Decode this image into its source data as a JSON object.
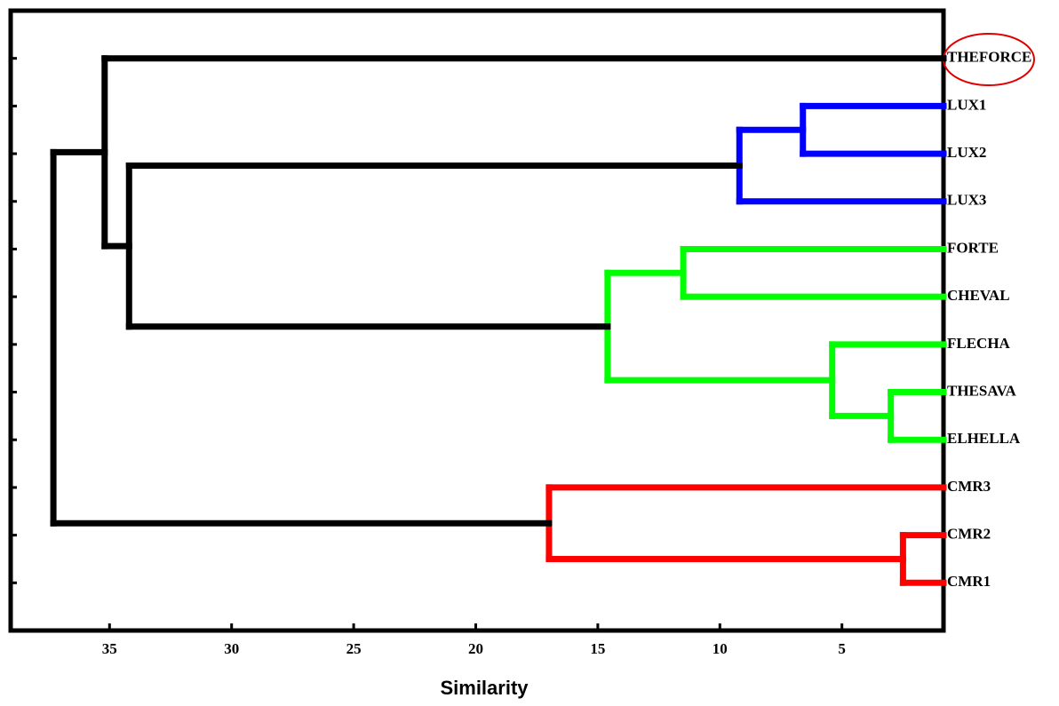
{
  "chart_data": {
    "type": "dendrogram",
    "x_label": "Similarity",
    "xlim": [
      39.05,
      0.84
    ],
    "xticks": [
      35,
      30,
      25,
      20,
      15,
      10,
      5
    ],
    "tree": {
      "height": 37.3,
      "color": "#000000",
      "children": [
        {
          "height": 35.2,
          "color": "#000000",
          "children": [
            {
              "label": "THEFORCE"
            },
            {
              "height": 34.2,
              "color": "#000000",
              "children": [
                {
                  "height": 9.2,
                  "color": "#0000ff",
                  "children": [
                    {
                      "height": 6.6,
                      "color": "#0000ff",
                      "children": [
                        {
                          "label": "LUX1"
                        },
                        {
                          "label": "LUX2"
                        }
                      ]
                    },
                    {
                      "label": "LUX3"
                    }
                  ]
                },
                {
                  "height": 14.6,
                  "color": "#00ff00",
                  "children": [
                    {
                      "height": 11.5,
                      "color": "#00ff00",
                      "children": [
                        {
                          "label": "FORTE"
                        },
                        {
                          "label": "CHEVAL"
                        }
                      ]
                    },
                    {
                      "height": 5.4,
                      "color": "#00ff00",
                      "children": [
                        {
                          "label": "FLECHA"
                        },
                        {
                          "height": 3.0,
                          "color": "#00ff00",
                          "children": [
                            {
                              "label": "THESAVA"
                            },
                            {
                              "label": "ELHELLA"
                            }
                          ]
                        }
                      ]
                    }
                  ]
                }
              ]
            }
          ]
        },
        {
          "height": 17.0,
          "color": "#ff0000",
          "children": [
            {
              "label": "CMR3"
            },
            {
              "height": 2.5,
              "color": "#ff0000",
              "children": [
                {
                  "label": "CMR2"
                },
                {
                  "label": "CMR1"
                }
              ]
            }
          ]
        }
      ]
    }
  }
}
